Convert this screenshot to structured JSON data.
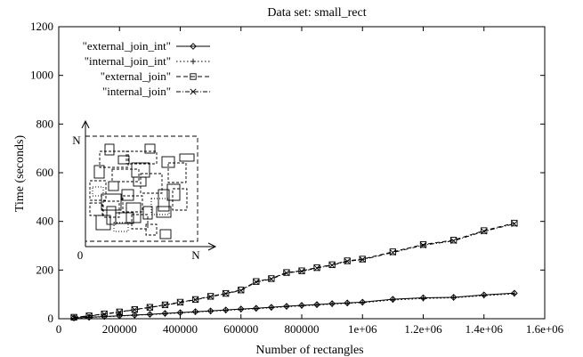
{
  "chart_data": {
    "type": "line",
    "title": "Data set: small_rect",
    "xlabel": "Number of rectangles",
    "ylabel": "Time (seconds)",
    "xlim": [
      0,
      1600000
    ],
    "ylim": [
      0,
      1200
    ],
    "x_ticks": [
      0,
      200000,
      400000,
      600000,
      800000,
      1000000,
      1200000,
      1400000,
      1600000
    ],
    "x_tick_labels": [
      "0",
      "200000",
      "400000",
      "600000",
      "800000",
      "1e+06",
      "1.2e+06",
      "1.4e+06",
      "1.6e+06"
    ],
    "y_ticks": [
      0,
      200,
      400,
      600,
      800,
      1000,
      1200
    ],
    "y_tick_labels": [
      "0",
      "200",
      "400",
      "600",
      "800",
      "1000",
      "1200"
    ],
    "grid": false,
    "legend_placement": "top-left",
    "x": [
      50000,
      100000,
      150000,
      200000,
      250000,
      300000,
      350000,
      400000,
      450000,
      500000,
      550000,
      600000,
      650000,
      700000,
      750000,
      800000,
      850000,
      900000,
      950000,
      1000000,
      1100000,
      1200000,
      1300000,
      1400000,
      1500000
    ],
    "series": [
      {
        "name": "\"external_join_int\"",
        "marker": "diamond",
        "dash": "solid",
        "values": [
          3,
          6,
          9,
          12,
          15,
          18,
          22,
          25,
          29,
          32,
          36,
          40,
          43,
          47,
          51,
          55,
          58,
          62,
          65,
          68,
          80,
          86,
          88,
          98,
          105
        ]
      },
      {
        "name": "\"internal_join_int\"",
        "marker": "plus",
        "dash": "dotted",
        "values": [
          2,
          5,
          8,
          11,
          14,
          17,
          20,
          24,
          27,
          31,
          34,
          38,
          41,
          45,
          49,
          53,
          56,
          60,
          63,
          66,
          77,
          83,
          86,
          95,
          102
        ]
      },
      {
        "name": "\"external_join\"",
        "marker": "square",
        "dash": "dashed",
        "values": [
          6,
          12,
          20,
          28,
          38,
          47,
          57,
          68,
          79,
          92,
          104,
          118,
          153,
          165,
          190,
          197,
          210,
          222,
          238,
          245,
          275,
          305,
          323,
          362,
          393
        ]
      },
      {
        "name": "\"internal_join\"",
        "marker": "cross",
        "dash": "dashdot",
        "values": [
          5,
          11,
          19,
          27,
          37,
          46,
          56,
          66,
          78,
          90,
          103,
          116,
          151,
          163,
          188,
          195,
          208,
          220,
          236,
          243,
          272,
          302,
          320,
          359,
          390
        ]
      }
    ],
    "inset": {
      "axis_origin_label": "0",
      "axis_x_end_label": "N",
      "axis_y_end_label": "N"
    }
  }
}
